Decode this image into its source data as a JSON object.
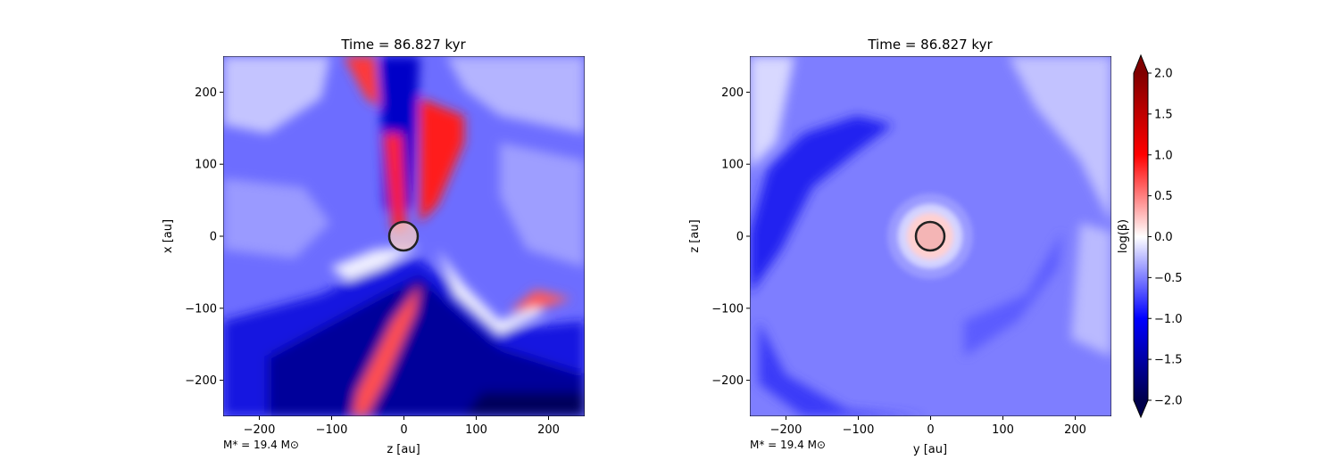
{
  "chart_data": [
    {
      "type": "heatmap",
      "title": "Time = 86.827 kyr",
      "xlabel": "z [au]",
      "ylabel": "x [au]",
      "xlim": [
        -250,
        250
      ],
      "ylim": [
        -250,
        250
      ],
      "xticks": [
        "−200",
        "−100",
        "0",
        "100",
        "200"
      ],
      "xtick_values": [
        -200,
        -100,
        0,
        100,
        200
      ],
      "yticks": [
        "200",
        "100",
        "0",
        "−100",
        "−200"
      ],
      "ytick_values": [
        200,
        100,
        0,
        -100,
        -200
      ],
      "annotation": "M* = 19.4 M⊙",
      "circle": {
        "x": 0,
        "y": 0,
        "r": 20
      },
      "grid": false
    },
    {
      "type": "heatmap",
      "title": "Time = 86.827 kyr",
      "xlabel": "y [au]",
      "ylabel": "z [au]",
      "xlim": [
        -250,
        250
      ],
      "ylim": [
        -250,
        250
      ],
      "xticks": [
        "−200",
        "−100",
        "0",
        "100",
        "200"
      ],
      "xtick_values": [
        -200,
        -100,
        0,
        100,
        200
      ],
      "yticks": [
        "200",
        "100",
        "0",
        "−100",
        "−200"
      ],
      "ytick_values": [
        200,
        100,
        0,
        -100,
        -200
      ],
      "annotation": "M* = 19.4 M⊙",
      "circle": {
        "x": 0,
        "y": 0,
        "r": 20
      },
      "grid": false
    }
  ],
  "colorbar": {
    "label": "log(β)",
    "range": [
      -2.0,
      2.0
    ],
    "ticks": [
      "2.0",
      "1.5",
      "1.0",
      "0.5",
      "0.0",
      "−0.5",
      "−1.0",
      "−1.5",
      "−2.0"
    ],
    "tick_values": [
      2.0,
      1.5,
      1.0,
      0.5,
      0.0,
      -0.5,
      -1.0,
      -1.5,
      -2.0
    ],
    "colormap": "seismic",
    "colors": {
      "min": "#00004c",
      "mid": "#ffffff",
      "max": "#800000"
    }
  }
}
